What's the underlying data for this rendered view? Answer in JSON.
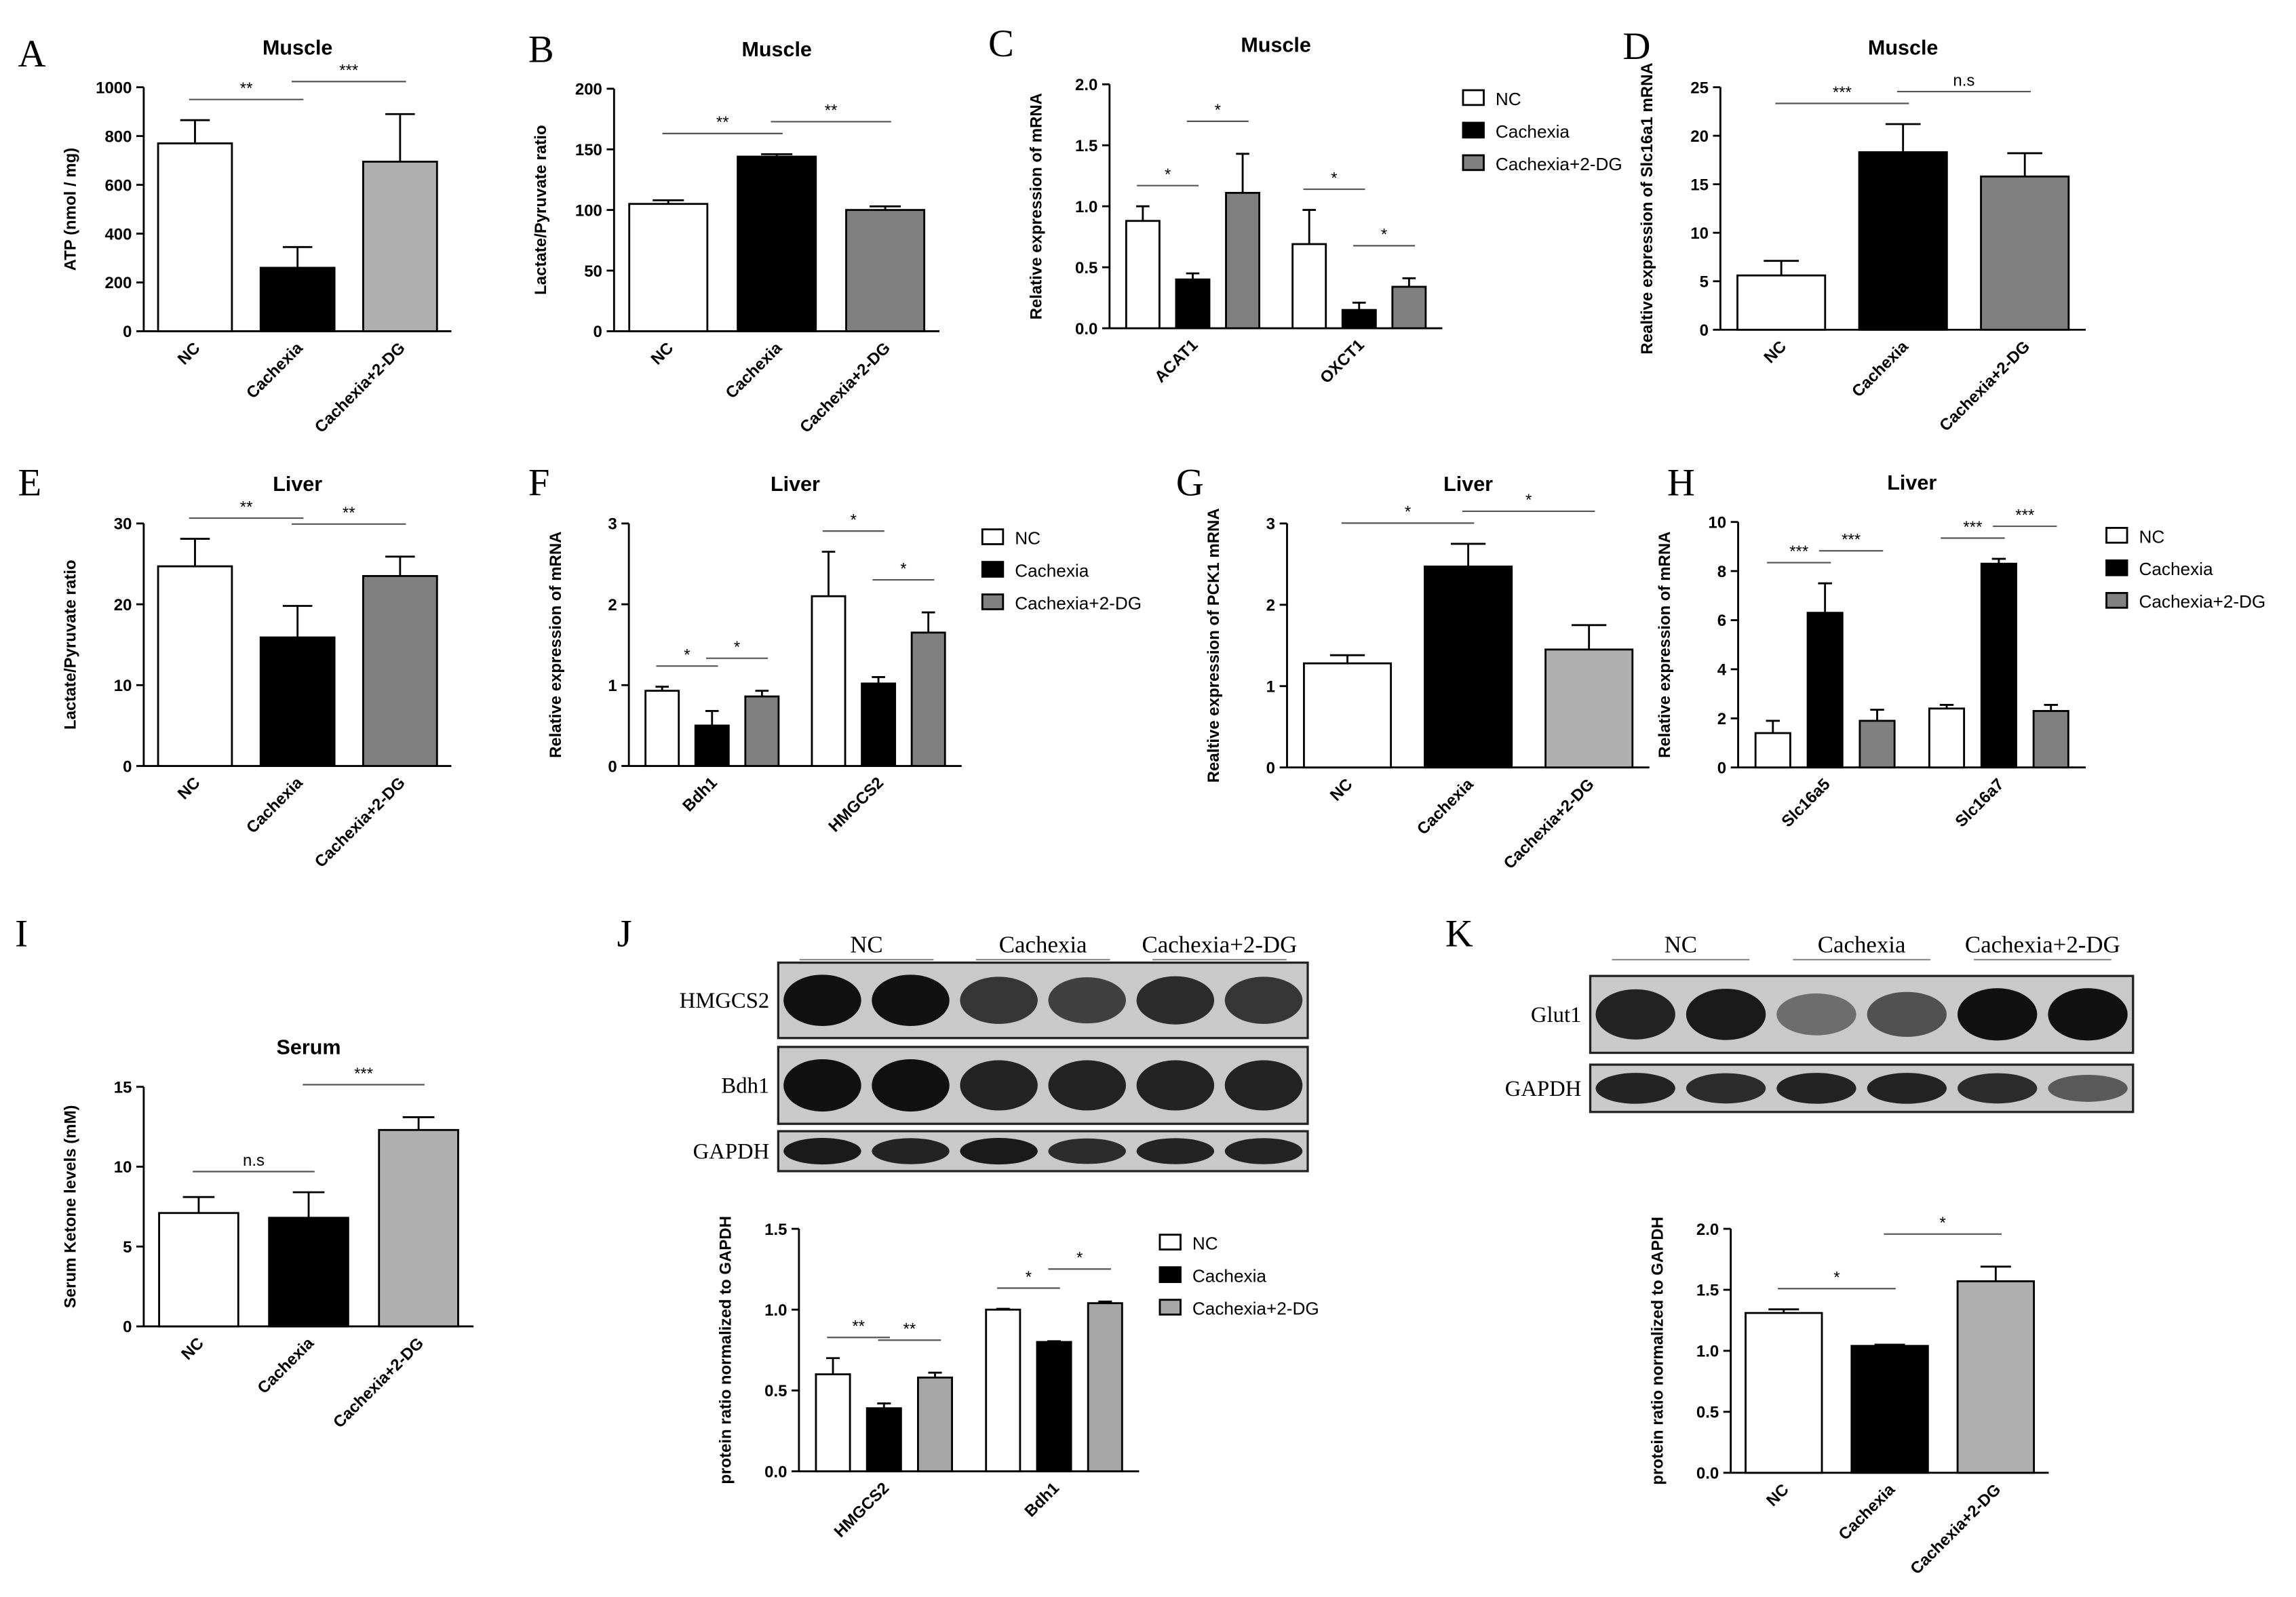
{
  "chart_data": [
    {
      "type": "bar",
      "panel": "A",
      "title": "Muscle",
      "y_label": "ATP (nmol / mg)",
      "categories": [
        "NC",
        "Cachexia",
        "Cachexia+2-DG"
      ],
      "values": [
        770,
        260,
        695
      ],
      "errors": [
        95,
        85,
        195
      ],
      "colors": [
        "#ffffff",
        "#000000",
        "#b0b0b0"
      ],
      "ylim": [
        0,
        1000
      ],
      "yticks": [
        0,
        200,
        400,
        600,
        800,
        1000
      ],
      "annotations": [
        "**",
        "***"
      ]
    },
    {
      "type": "bar",
      "panel": "B",
      "title": "Muscle",
      "y_label": "Lactate/Pyruvate ratio",
      "categories": [
        "NC",
        "Cachexia",
        "Cachexia+2-DG"
      ],
      "values": [
        105,
        144,
        100
      ],
      "errors": [
        3,
        2,
        3
      ],
      "colors": [
        "#ffffff",
        "#000000",
        "#808080"
      ],
      "ylim": [
        0,
        200
      ],
      "yticks": [
        0,
        50,
        100,
        150,
        200
      ],
      "annotations": [
        "**",
        "**"
      ]
    },
    {
      "type": "bar",
      "panel": "C",
      "title": "Muscle",
      "y_label": "Relative expression of mRNA",
      "categories": [
        "ACAT1",
        "OXCT1"
      ],
      "series": [
        {
          "name": "NC",
          "color": "#ffffff",
          "values": [
            0.88,
            0.69
          ],
          "errors": [
            0.12,
            0.28
          ]
        },
        {
          "name": "Cachexia",
          "color": "#000000",
          "values": [
            0.4,
            0.15
          ],
          "errors": [
            0.05,
            0.06
          ]
        },
        {
          "name": "Cachexia+2-DG",
          "color": "#808080",
          "values": [
            1.11,
            0.34
          ],
          "errors": [
            0.32,
            0.07
          ]
        }
      ],
      "ylim": [
        0,
        2
      ],
      "yticks": [
        {
          "value": 0,
          "label": "0.0"
        },
        0.5,
        {
          "value": 1,
          "label": "1.0"
        },
        1.5,
        {
          "value": 2,
          "label": "2.0"
        }
      ],
      "legend": "right",
      "annotations": [
        "*",
        "*",
        "*",
        "*"
      ]
    },
    {
      "type": "bar",
      "panel": "D",
      "title": "Muscle",
      "y_label": "Realtive expression of Slc16a1 mRNA",
      "categories": [
        "NC",
        "Cachexia",
        "Cachexia+2-DG"
      ],
      "values": [
        5.6,
        18.3,
        15.8
      ],
      "errors": [
        1.5,
        2.9,
        2.4
      ],
      "colors": [
        "#ffffff",
        "#000000",
        "#808080"
      ],
      "ylim": [
        0,
        25
      ],
      "yticks": [
        0,
        5,
        10,
        15,
        20,
        25
      ],
      "annotations": [
        "***",
        "n.s"
      ]
    },
    {
      "type": "bar",
      "panel": "E",
      "title": "Liver",
      "y_label": "Lactate/Pyruvate ratio",
      "categories": [
        "NC",
        "Cachexia",
        "Cachexia+2-DG"
      ],
      "values": [
        24.7,
        15.9,
        23.5
      ],
      "errors": [
        3.4,
        3.9,
        2.4
      ],
      "colors": [
        "#ffffff",
        "#000000",
        "#808080"
      ],
      "ylim": [
        0,
        30
      ],
      "yticks": [
        0,
        10,
        20,
        30
      ],
      "annotations": [
        "**",
        "**"
      ]
    },
    {
      "type": "bar",
      "panel": "F",
      "title": "Liver",
      "y_label": "Relative expression of mRNA",
      "categories": [
        "Bdh1",
        "HMGCS2"
      ],
      "series": [
        {
          "name": "NC",
          "color": "#ffffff",
          "values": [
            0.93,
            2.1
          ],
          "errors": [
            0.05,
            0.55
          ]
        },
        {
          "name": "Cachexia",
          "color": "#000000",
          "values": [
            0.5,
            1.02
          ],
          "errors": [
            0.18,
            0.08
          ]
        },
        {
          "name": "Cachexia+2-DG",
          "color": "#808080",
          "values": [
            0.86,
            1.65
          ],
          "errors": [
            0.07,
            0.25
          ]
        }
      ],
      "ylim": [
        0,
        3
      ],
      "yticks": [
        0,
        1,
        2,
        3
      ],
      "legend": "right",
      "annotations": [
        "*",
        "*",
        "*",
        "*"
      ]
    },
    {
      "type": "bar",
      "panel": "G",
      "title": "Liver",
      "y_label": "Realtive expression of PCK1 mRNA",
      "categories": [
        "NC",
        "Cachexia",
        "Cachexia+2-DG"
      ],
      "values": [
        1.28,
        2.47,
        1.45
      ],
      "errors": [
        0.1,
        0.28,
        0.3
      ],
      "colors": [
        "#ffffff",
        "#000000",
        "#b0b0b0"
      ],
      "ylim": [
        0,
        3
      ],
      "yticks": [
        0,
        1,
        2,
        3
      ],
      "annotations": [
        "*",
        "*"
      ]
    },
    {
      "type": "bar",
      "panel": "H",
      "title": "Liver",
      "y_label": "Relative expression of mRNA",
      "categories": [
        "Slc16a5",
        "Slc16a7"
      ],
      "series": [
        {
          "name": "NC",
          "color": "#ffffff",
          "values": [
            1.4,
            2.4
          ],
          "errors": [
            0.5,
            0.15
          ]
        },
        {
          "name": "Cachexia",
          "color": "#000000",
          "values": [
            6.3,
            8.3
          ],
          "errors": [
            1.2,
            0.2
          ]
        },
        {
          "name": "Cachexia+2-DG",
          "color": "#808080",
          "values": [
            1.9,
            2.3
          ],
          "errors": [
            0.45,
            0.25
          ]
        }
      ],
      "ylim": [
        0,
        10
      ],
      "yticks": [
        0,
        2,
        4,
        6,
        8,
        10
      ],
      "legend": "right",
      "annotations": [
        "***",
        "***",
        "***",
        "***"
      ]
    },
    {
      "type": "bar",
      "panel": "I",
      "title": "Serum",
      "y_label": "Serum Ketone levels (mM)",
      "categories": [
        "NC",
        "Cachexia",
        "Cachexia+2-DG"
      ],
      "values": [
        7.1,
        6.8,
        12.3
      ],
      "errors": [
        1.0,
        1.6,
        0.8
      ],
      "colors": [
        "#ffffff",
        "#000000",
        "#b0b0b0"
      ],
      "ylim": [
        0,
        15
      ],
      "yticks": [
        0,
        5,
        10,
        15
      ],
      "annotations": [
        "n.s",
        "***"
      ]
    },
    {
      "type": "bar",
      "panel": "J",
      "y_label": "protein ratio normalized to GAPDH",
      "categories": [
        "HMGCS2",
        "Bdh1"
      ],
      "series": [
        {
          "name": "NC",
          "color": "#ffffff",
          "values": [
            0.6,
            1.0
          ],
          "errors": [
            0.1,
            0.005
          ]
        },
        {
          "name": "Cachexia",
          "color": "#000000",
          "values": [
            0.39,
            0.8
          ],
          "errors": [
            0.03,
            0.005
          ]
        },
        {
          "name": "Cachexia+2-DG",
          "color": "#a6a6a6",
          "values": [
            0.58,
            1.04
          ],
          "errors": [
            0.03,
            0.01
          ]
        }
      ],
      "ylim": [
        0,
        1.5
      ],
      "yticks": [
        {
          "value": 0,
          "label": "0.0"
        },
        0.5,
        {
          "value": 1,
          "label": "1.0"
        },
        1.5
      ],
      "legend": "right",
      "annotations": [
        "**",
        "**",
        "*",
        "*"
      ]
    },
    {
      "type": "bar",
      "panel": "K",
      "y_label": "protein ratio normalized to GAPDH",
      "categories": [
        "NC",
        "Cachexia",
        "Cachexia+2-DG"
      ],
      "values": [
        1.31,
        1.04,
        1.57
      ],
      "errors": [
        0.03,
        0.01,
        0.12
      ],
      "colors": [
        "#ffffff",
        "#000000",
        "#b0b0b0"
      ],
      "ylim": [
        0,
        2
      ],
      "yticks": [
        {
          "value": 0,
          "label": "0.0"
        },
        0.5,
        {
          "value": 1,
          "label": "1.0"
        },
        1.5,
        {
          "value": 2,
          "label": "2.0"
        }
      ],
      "annotations": [
        "*",
        "*"
      ]
    }
  ],
  "blots": [
    {
      "groups": [
        "NC",
        "Cachexia",
        "Cachexia+2-DG"
      ],
      "rows": [
        "HMGCS2",
        "Bdh1",
        "GAPDH"
      ]
    },
    {
      "groups": [
        "NC",
        "Cachexia",
        "Cachexia+2-DG"
      ],
      "rows": [
        "Glut1",
        "GAPDH"
      ]
    }
  ]
}
